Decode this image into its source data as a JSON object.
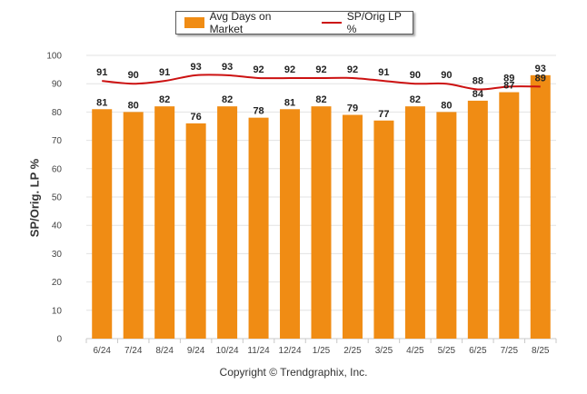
{
  "chart_data": {
    "type": "bar",
    "categories": [
      "6/24",
      "7/24",
      "8/24",
      "9/24",
      "10/24",
      "11/24",
      "12/24",
      "1/25",
      "2/25",
      "3/25",
      "4/25",
      "5/25",
      "6/25",
      "7/25",
      "8/25"
    ],
    "series": [
      {
        "name": "Avg Days on Market",
        "type": "bar",
        "color": "#f08c14",
        "values": [
          81,
          80,
          82,
          76,
          82,
          78,
          81,
          82,
          79,
          77,
          82,
          80,
          84,
          87,
          93
        ]
      },
      {
        "name": "SP/Orig LP %",
        "type": "line",
        "color": "#cc1111",
        "values": [
          91,
          90,
          91,
          93,
          93,
          92,
          92,
          92,
          92,
          91,
          90,
          90,
          88,
          89,
          89
        ]
      }
    ],
    "ylabel": "SP/Orig. LP %",
    "ylim": [
      0,
      100
    ],
    "yticks": [
      0,
      10,
      20,
      30,
      40,
      50,
      60,
      70,
      80,
      90,
      100
    ],
    "grid": true,
    "legend": "top-center"
  },
  "footer": "Copyright © Trendgraphix, Inc."
}
